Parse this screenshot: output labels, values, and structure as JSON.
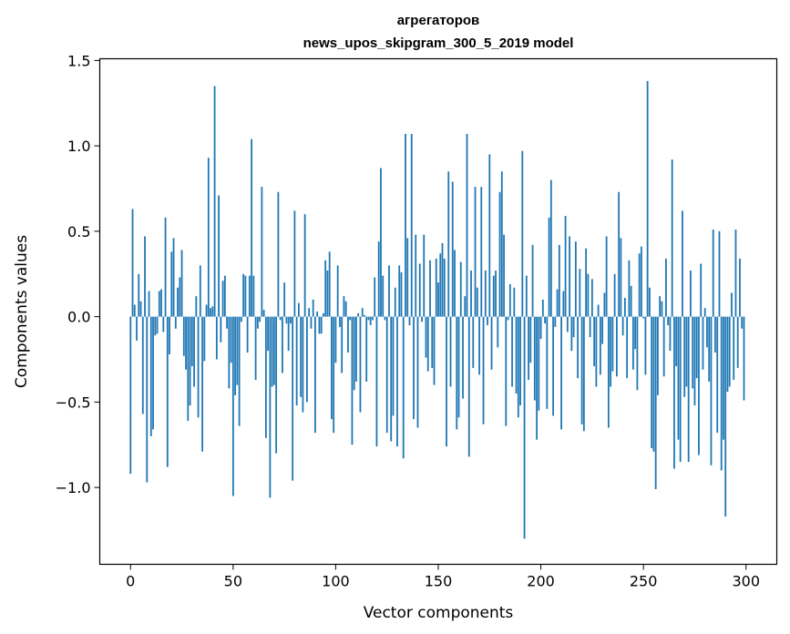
{
  "chart_data": {
    "type": "bar",
    "title_line1": "агрегаторов",
    "title_line2": "news_upos_skipgram_300_5_2019 model",
    "xlabel": "Vector components",
    "ylabel": "Components values",
    "xlim": [
      -15,
      315
    ],
    "ylim": [
      -1.45,
      1.51
    ],
    "bar_color": "#1f77b4",
    "xticks": [
      0,
      50,
      100,
      150,
      200,
      250,
      300
    ],
    "xtick_labels": [
      "0",
      "50",
      "100",
      "150",
      "200",
      "250",
      "300"
    ],
    "yticks": [
      -1.0,
      -0.5,
      0.0,
      0.5,
      1.0,
      1.5
    ],
    "ytick_labels": [
      "−1.0",
      "−0.5",
      "0.0",
      "0.5",
      "1.0",
      "1.5"
    ],
    "values": [
      -0.92,
      0.63,
      0.07,
      -0.14,
      0.25,
      0.09,
      -0.57,
      0.47,
      -0.97,
      0.15,
      -0.7,
      -0.66,
      -0.11,
      -0.1,
      0.15,
      0.16,
      -0.09,
      0.58,
      -0.88,
      -0.22,
      0.38,
      0.46,
      -0.07,
      0.17,
      0.23,
      0.39,
      -0.23,
      -0.31,
      -0.61,
      -0.52,
      -0.29,
      -0.41,
      0.12,
      -0.59,
      0.3,
      -0.79,
      -0.26,
      0.07,
      0.93,
      0.05,
      0.06,
      1.35,
      -0.25,
      0.71,
      -0.15,
      0.21,
      0.24,
      -0.07,
      -0.42,
      -0.27,
      -1.05,
      -0.46,
      -0.4,
      -0.64,
      -0.03,
      0.25,
      0.24,
      -0.21,
      0.24,
      1.04,
      0.24,
      -0.37,
      -0.07,
      -0.03,
      0.76,
      0.04,
      -0.71,
      -0.2,
      -1.06,
      -0.41,
      -0.4,
      -0.8,
      0.73,
      -0.02,
      -0.33,
      0.2,
      -0.04,
      -0.2,
      -0.04,
      -0.96,
      0.62,
      -0.52,
      0.08,
      -0.47,
      -0.56,
      0.6,
      -0.5,
      0.05,
      -0.07,
      0.1,
      -0.68,
      0.03,
      -0.1,
      -0.1,
      0.02,
      0.33,
      0.27,
      0.38,
      -0.6,
      -0.68,
      -0.27,
      0.3,
      -0.06,
      -0.33,
      0.12,
      0.09,
      -0.21,
      -0.02,
      -0.75,
      -0.43,
      -0.38,
      0.02,
      -0.56,
      0.05,
      0.01,
      -0.38,
      -0.02,
      -0.05,
      -0.02,
      0.23,
      -0.76,
      0.44,
      0.87,
      0.24,
      -0.02,
      -0.68,
      0.3,
      -0.73,
      -0.58,
      0.17,
      -0.76,
      0.3,
      0.26,
      -0.83,
      1.07,
      0.46,
      -0.05,
      1.07,
      -0.6,
      0.48,
      -0.65,
      0.31,
      -0.03,
      0.48,
      -0.24,
      -0.32,
      0.33,
      -0.3,
      -0.4,
      0.34,
      0.2,
      0.37,
      0.43,
      0.34,
      -0.76,
      0.85,
      -0.41,
      0.79,
      0.39,
      -0.66,
      -0.59,
      0.32,
      -0.48,
      0.12,
      1.07,
      -0.82,
      0.27,
      -0.3,
      0.76,
      0.17,
      -0.34,
      0.76,
      -0.63,
      0.27,
      -0.05,
      0.95,
      -0.31,
      0.24,
      0.27,
      -0.18,
      0.73,
      0.85,
      0.48,
      -0.64,
      -0.02,
      0.19,
      -0.41,
      0.17,
      -0.45,
      -0.59,
      -0.52,
      0.97,
      -1.3,
      0.24,
      -0.37,
      -0.27,
      0.42,
      -0.49,
      -0.72,
      -0.55,
      -0.13,
      0.1,
      -0.04,
      -0.54,
      0.58,
      0.8,
      -0.58,
      -0.06,
      0.16,
      0.42,
      -0.66,
      0.15,
      0.59,
      -0.09,
      0.47,
      -0.2,
      -0.12,
      0.44,
      -0.36,
      0.28,
      -0.63,
      -0.67,
      0.4,
      0.25,
      -0.12,
      0.22,
      -0.29,
      -0.41,
      0.07,
      -0.34,
      -0.16,
      0.14,
      0.47,
      -0.65,
      -0.41,
      -0.32,
      0.25,
      -0.35,
      0.73,
      0.46,
      -0.11,
      0.11,
      -0.36,
      0.33,
      0.18,
      -0.31,
      -0.19,
      -0.43,
      0.37,
      0.41,
      -0.01,
      -0.34,
      1.38,
      0.17,
      -0.77,
      -0.79,
      -1.01,
      -0.46,
      0.12,
      0.09,
      -0.35,
      0.34,
      -0.05,
      -0.2,
      0.92,
      -0.89,
      -0.29,
      -0.72,
      -0.85,
      0.62,
      -0.47,
      -0.41,
      -0.85,
      0.27,
      -0.42,
      -0.52,
      -0.36,
      -0.81,
      0.31,
      -0.31,
      0.05,
      -0.18,
      -0.38,
      -0.87,
      0.51,
      -0.21,
      -0.68,
      0.5,
      -0.9,
      -0.72,
      -1.17,
      -0.44,
      -0.41,
      0.14,
      -0.37,
      0.51,
      -0.3,
      0.34,
      -0.07,
      -0.49
    ]
  }
}
